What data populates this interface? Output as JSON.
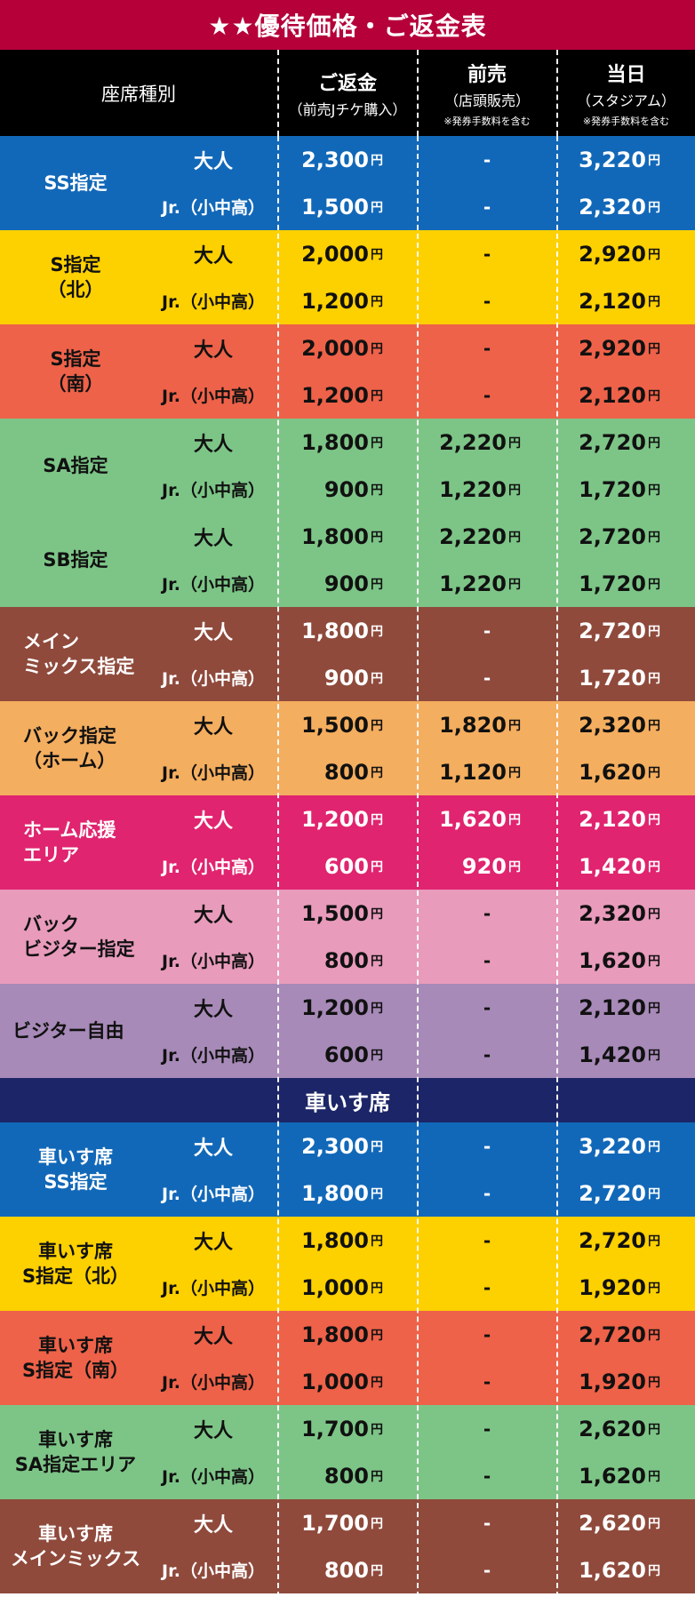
{
  "title": "★★優待価格・ご返金表",
  "header": {
    "col0": "座席種別",
    "col1_main": "ご返金",
    "col1_sub": "（前売Jチケ購入）",
    "col2_main": "前売",
    "col2_sub": "（店頭販売）",
    "col2_note": "※発券手数料を含む",
    "col3_main": "当日",
    "col3_sub": "（スタジアム）",
    "col3_note": "※発券手数料を含む"
  },
  "labels": {
    "adult": "大人",
    "jr": "Jr.（小中高）",
    "yen": "円",
    "dash": "-"
  },
  "section_wheelchair": "車いす席",
  "groups": [
    {
      "name": "SS指定",
      "bg": "#1268b8",
      "fg": "#ffffff",
      "align": "center",
      "rows": [
        {
          "cat": "adult",
          "refund": "2,300",
          "advance": "-",
          "dayof": "3,220"
        },
        {
          "cat": "jr",
          "refund": "1,500",
          "advance": "-",
          "dayof": "2,320"
        }
      ]
    },
    {
      "name": "S指定\n（北）",
      "bg": "#fdd000",
      "fg": "#111111",
      "align": "center",
      "rows": [
        {
          "cat": "adult",
          "refund": "2,000",
          "advance": "-",
          "dayof": "2,920"
        },
        {
          "cat": "jr",
          "refund": "1,200",
          "advance": "-",
          "dayof": "2,120"
        }
      ]
    },
    {
      "name": "S指定\n（南）",
      "bg": "#ee6249",
      "fg": "#111111",
      "align": "center",
      "rows": [
        {
          "cat": "adult",
          "refund": "2,000",
          "advance": "-",
          "dayof": "2,920"
        },
        {
          "cat": "jr",
          "refund": "1,200",
          "advance": "-",
          "dayof": "2,120"
        }
      ]
    },
    {
      "name": "SA指定",
      "bg": "#7dc587",
      "fg": "#111111",
      "align": "center",
      "rows": [
        {
          "cat": "adult",
          "refund": "1,800",
          "advance": "2,220",
          "dayof": "2,720"
        },
        {
          "cat": "jr",
          "refund": "900",
          "advance": "1,220",
          "dayof": "1,720"
        }
      ]
    },
    {
      "name": "SB指定",
      "bg": "#7dc587",
      "fg": "#111111",
      "align": "center",
      "rows": [
        {
          "cat": "adult",
          "refund": "1,800",
          "advance": "2,220",
          "dayof": "2,720"
        },
        {
          "cat": "jr",
          "refund": "900",
          "advance": "1,220",
          "dayof": "1,720"
        }
      ]
    },
    {
      "name": "メイン\nミックス指定",
      "bg": "#8f4a3c",
      "fg": "#ffffff",
      "align": "left",
      "rows": [
        {
          "cat": "adult",
          "refund": "1,800",
          "advance": "-",
          "dayof": "2,720"
        },
        {
          "cat": "jr",
          "refund": "900",
          "advance": "-",
          "dayof": "1,720"
        }
      ]
    },
    {
      "name": "バック指定\n（ホーム）",
      "bg": "#f4ae5f",
      "fg": "#111111",
      "align": "left",
      "rows": [
        {
          "cat": "adult",
          "refund": "1,500",
          "advance": "1,820",
          "dayof": "2,320"
        },
        {
          "cat": "jr",
          "refund": "800",
          "advance": "1,120",
          "dayof": "1,620"
        }
      ]
    },
    {
      "name": "ホーム応援\nエリア",
      "bg": "#e0246f",
      "fg": "#ffffff",
      "align": "left",
      "rows": [
        {
          "cat": "adult",
          "refund": "1,200",
          "advance": "1,620",
          "dayof": "2,120"
        },
        {
          "cat": "jr",
          "refund": "600",
          "advance": "920",
          "dayof": "1,420"
        }
      ]
    },
    {
      "name": "バック\nビジター指定",
      "bg": "#e89bbb",
      "fg": "#111111",
      "align": "left",
      "rows": [
        {
          "cat": "adult",
          "refund": "1,500",
          "advance": "-",
          "dayof": "2,320"
        },
        {
          "cat": "jr",
          "refund": "800",
          "advance": "-",
          "dayof": "1,620"
        }
      ]
    },
    {
      "name": "ビジター自由",
      "bg": "#a78ab8",
      "fg": "#111111",
      "align": "left2",
      "rows": [
        {
          "cat": "adult",
          "refund": "1,200",
          "advance": "-",
          "dayof": "2,120"
        },
        {
          "cat": "jr",
          "refund": "600",
          "advance": "-",
          "dayof": "1,420"
        }
      ]
    }
  ],
  "wheelchair_groups": [
    {
      "name": "車いす席\nSS指定",
      "bg": "#1268b8",
      "fg": "#ffffff",
      "align": "center",
      "rows": [
        {
          "cat": "adult",
          "refund": "2,300",
          "advance": "-",
          "dayof": "3,220"
        },
        {
          "cat": "jr",
          "refund": "1,800",
          "advance": "-",
          "dayof": "2,720"
        }
      ]
    },
    {
      "name": "車いす席\nS指定（北）",
      "bg": "#fdd000",
      "fg": "#111111",
      "align": "center",
      "rows": [
        {
          "cat": "adult",
          "refund": "1,800",
          "advance": "-",
          "dayof": "2,720"
        },
        {
          "cat": "jr",
          "refund": "1,000",
          "advance": "-",
          "dayof": "1,920"
        }
      ]
    },
    {
      "name": "車いす席\nS指定（南）",
      "bg": "#ee6249",
      "fg": "#111111",
      "align": "center",
      "rows": [
        {
          "cat": "adult",
          "refund": "1,800",
          "advance": "-",
          "dayof": "2,720"
        },
        {
          "cat": "jr",
          "refund": "1,000",
          "advance": "-",
          "dayof": "1,920"
        }
      ]
    },
    {
      "name": "車いす席\nSA指定エリア",
      "bg": "#7dc587",
      "fg": "#111111",
      "align": "center",
      "rows": [
        {
          "cat": "adult",
          "refund": "1,700",
          "advance": "-",
          "dayof": "2,620"
        },
        {
          "cat": "jr",
          "refund": "800",
          "advance": "-",
          "dayof": "1,620"
        }
      ]
    },
    {
      "name": "車いす席\nメインミックス",
      "bg": "#8f4a3c",
      "fg": "#ffffff",
      "align": "center",
      "rows": [
        {
          "cat": "adult",
          "refund": "1,700",
          "advance": "-",
          "dayof": "2,620"
        },
        {
          "cat": "jr",
          "refund": "800",
          "advance": "-",
          "dayof": "1,620"
        }
      ]
    }
  ]
}
